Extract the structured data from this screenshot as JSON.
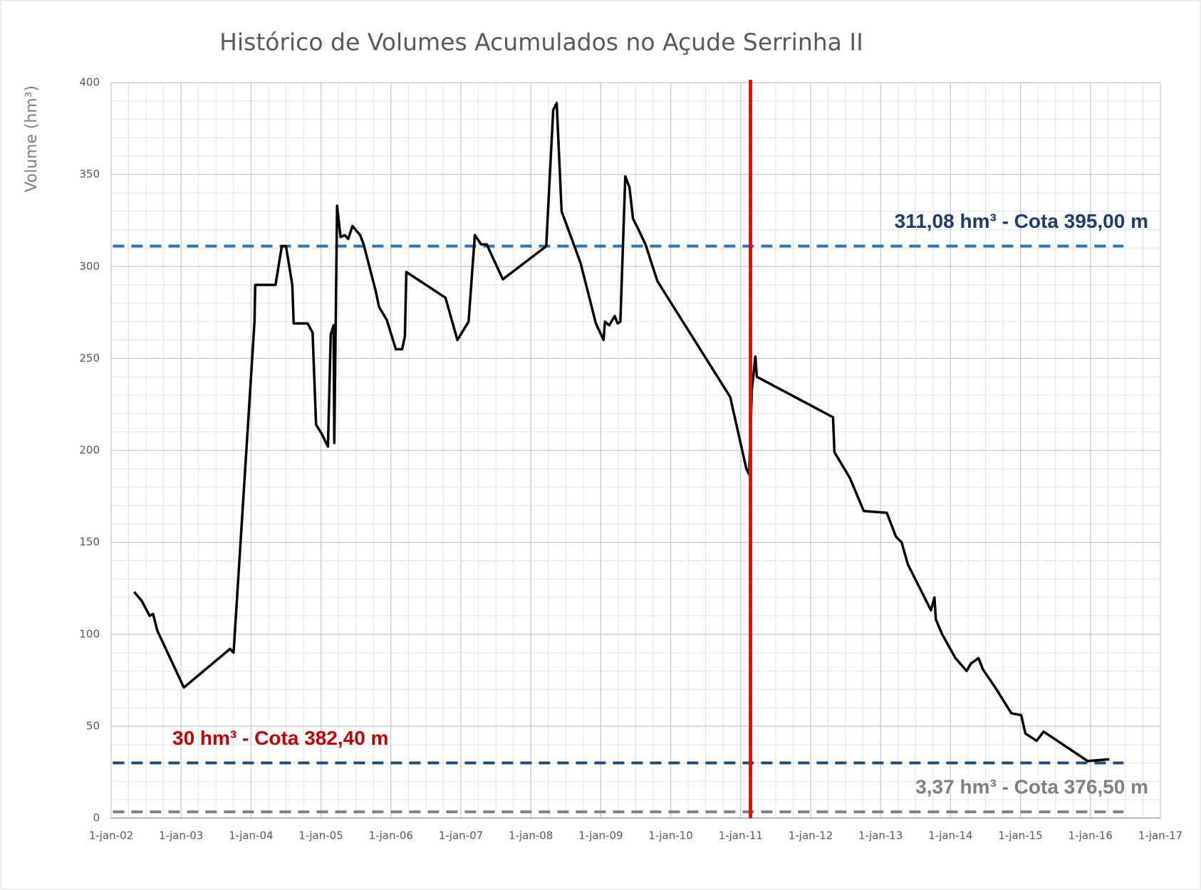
{
  "chart_data": {
    "type": "line",
    "title": "Histórico de Volumes Acumulados no Açude Serrinha II",
    "y_label": "Volume  (hm³)",
    "xlim": [
      2002,
      2017
    ],
    "xticks": [
      {
        "value": 2002,
        "label": "1-jan-02"
      },
      {
        "value": 2003,
        "label": "1-jan-03"
      },
      {
        "value": 2004,
        "label": "1-jan-04"
      },
      {
        "value": 2005,
        "label": "1-jan-05"
      },
      {
        "value": 2006,
        "label": "1-jan-06"
      },
      {
        "value": 2007,
        "label": "1-jan-07"
      },
      {
        "value": 2008,
        "label": "1-jan-08"
      },
      {
        "value": 2009,
        "label": "1-jan-09"
      },
      {
        "value": 2010,
        "label": "1-jan-10"
      },
      {
        "value": 2011,
        "label": "1-jan-11"
      },
      {
        "value": 2012,
        "label": "1-jan-12"
      },
      {
        "value": 2013,
        "label": "1-jan-13"
      },
      {
        "value": 2014,
        "label": "1-jan-14"
      },
      {
        "value": 2015,
        "label": "1-jan-15"
      },
      {
        "value": 2016,
        "label": "1-jan-16"
      },
      {
        "value": 2017,
        "label": "1-jan-17"
      }
    ],
    "ylim": [
      0,
      400
    ],
    "yticks": [
      0,
      50,
      100,
      150,
      200,
      250,
      300,
      350,
      400
    ],
    "grid": true,
    "minor_grid": {
      "x": 0.25,
      "y": 10
    },
    "x": [
      2002.33,
      2002.44,
      2002.55,
      2002.6,
      2002.66,
      2003.04,
      2003.7,
      2003.75,
      2004.05,
      2004.06,
      2004.35,
      2004.44,
      2004.5,
      2004.59,
      2004.61,
      2004.81,
      2004.88,
      2004.93,
      2005.01,
      2005.1,
      2005.14,
      2005.18,
      2005.19,
      2005.23,
      2005.28,
      2005.34,
      2005.39,
      2005.45,
      2005.56,
      2005.61,
      2005.78,
      2005.83,
      2005.94,
      2006.07,
      2006.16,
      2006.2,
      2006.22,
      2006.78,
      2006.95,
      2007.11,
      2007.2,
      2007.29,
      2007.37,
      2007.6,
      2008.22,
      2008.32,
      2008.37,
      2008.44,
      2008.71,
      2008.79,
      2008.93,
      2009.04,
      2009.06,
      2009.12,
      2009.2,
      2009.24,
      2009.28,
      2009.35,
      2009.41,
      2009.46,
      2009.54,
      2009.64,
      2009.81,
      2010.85,
      2011.08,
      2011.12,
      2011.16,
      2011.21,
      2011.23,
      2012.32,
      2012.34,
      2012.56,
      2012.76,
      2013.09,
      2013.22,
      2013.3,
      2013.39,
      2013.72,
      2013.77,
      2013.79,
      2013.88,
      2014.07,
      2014.23,
      2014.29,
      2014.4,
      2014.46,
      2014.64,
      2014.87,
      2015.01,
      2015.07,
      2015.23,
      2015.33,
      2015.96,
      2016.27
    ],
    "series": [
      {
        "color": "#000000",
        "values": [
          123,
          118,
          110,
          111,
          102,
          71,
          92,
          90,
          270,
          290,
          290,
          311,
          311,
          290,
          269,
          269,
          264,
          214,
          209,
          202,
          263,
          268,
          204,
          333,
          316,
          317,
          315,
          322,
          317,
          312,
          287,
          278,
          271,
          255,
          255,
          262,
          297,
          283,
          260,
          270,
          317,
          312,
          312,
          293,
          311,
          385,
          389,
          330,
          302,
          290,
          269,
          260,
          270,
          268,
          273,
          269,
          270,
          349,
          343,
          326,
          320,
          312,
          292,
          229,
          190,
          187,
          233,
          251,
          240,
          218,
          199,
          185,
          167,
          166,
          153,
          150,
          138,
          113,
          120,
          108,
          100,
          87,
          80,
          84,
          87,
          81,
          71,
          57,
          56,
          46,
          42,
          47,
          31,
          32
        ]
      }
    ],
    "hlines": [
      {
        "value": 311.08,
        "label": "311,08 hm³ - Cota 395,00 m",
        "color": "#2e75b6",
        "text_color": "#1f3c6e",
        "anchor": "right"
      },
      {
        "value": 30,
        "label": "30 hm³ - Cota 382,40 m",
        "color": "#1f4e79",
        "text_color": "#c00000",
        "anchor": "left"
      },
      {
        "value": 3.37,
        "label": "3,37 hm³ - Cota 376,50 m",
        "color": "#808080",
        "text_color": "#808080",
        "anchor": "right"
      }
    ],
    "vline": {
      "x": 2011.14,
      "color": "#ff0000"
    }
  }
}
